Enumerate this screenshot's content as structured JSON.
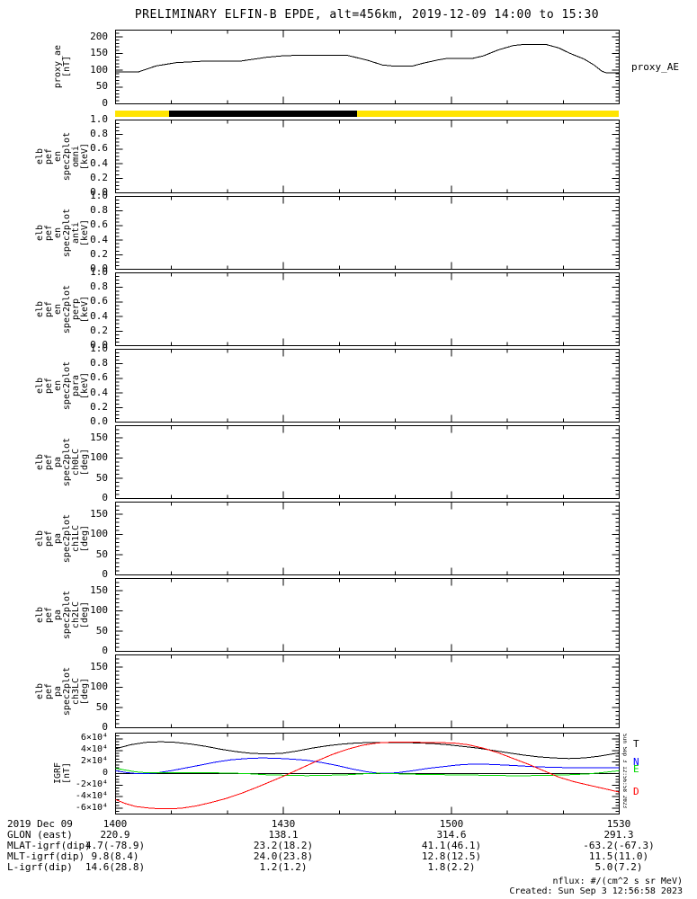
{
  "title": "PRELIMINARY ELFIN-B EPDE, alt=456km, 2019-12-09 14:00 to 15:30",
  "footer": {
    "nflux": "nflux: #/(cm^2 s sr MeV)",
    "created": "Created: Sun Sep  3 12:56:58 2023"
  },
  "side_stamp": "Sun Sep 3 12:56:58 2023",
  "xaxis": {
    "time_labels": [
      "1400",
      "1430",
      "1500",
      "1530"
    ],
    "major_fracs": [
      0,
      0.33333,
      0.66667,
      1
    ],
    "minor_divs": 9
  },
  "bottom_table": {
    "rows": [
      {
        "label": "2019 Dec 09",
        "values": [
          "1400",
          "1430",
          "1500",
          "1530"
        ]
      },
      {
        "label": "GLON (east)",
        "values": [
          "220.9",
          "138.1",
          "314.6",
          "291.3"
        ]
      },
      {
        "label": "MLAT-igrf(dip)",
        "values": [
          "4.7(-78.9)",
          "23.2(18.2)",
          "41.1(46.1)",
          "-63.2(-67.3)"
        ]
      },
      {
        "label": "MLT-igrf(dip)",
        "values": [
          "9.8(8.4)",
          "24.0(23.8)",
          "12.8(12.5)",
          "11.5(11.0)"
        ]
      },
      {
        "label": "L-igrf(dip)",
        "values": [
          "14.6(28.8)",
          "1.2(1.2)",
          "1.8(2.2)",
          "5.0(7.2)"
        ]
      }
    ]
  },
  "chart_data": [
    {
      "id": "proxy_ae",
      "type": "line",
      "ylabel_lines": [
        "proxy_ae",
        "[nT]"
      ],
      "right_label": "proxy_AE",
      "right_label_v": 108,
      "ylim": [
        0,
        220
      ],
      "yminor": 10,
      "yticks": [
        {
          "v": 0,
          "t": "0"
        },
        {
          "v": 50,
          "t": "50"
        },
        {
          "v": 100,
          "t": "100"
        },
        {
          "v": 150,
          "t": "150"
        },
        {
          "v": 200,
          "t": "200"
        }
      ],
      "series": [
        {
          "name": "proxy_AE",
          "color": "#000000",
          "points": [
            [
              0,
              95
            ],
            [
              0.045,
              95
            ],
            [
              0.08,
              113
            ],
            [
              0.12,
              123
            ],
            [
              0.17,
              127
            ],
            [
              0.25,
              128
            ],
            [
              0.3,
              139
            ],
            [
              0.33,
              143
            ],
            [
              0.36,
              145
            ],
            [
              0.46,
              145
            ],
            [
              0.5,
              130
            ],
            [
              0.53,
              116
            ],
            [
              0.55,
              113
            ],
            [
              0.59,
              113
            ],
            [
              0.61,
              121
            ],
            [
              0.64,
              131
            ],
            [
              0.66,
              136
            ],
            [
              0.71,
              136
            ],
            [
              0.73,
              143
            ],
            [
              0.76,
              161
            ],
            [
              0.79,
              174
            ],
            [
              0.81,
              177
            ],
            [
              0.855,
              177
            ],
            [
              0.88,
              167
            ],
            [
              0.9,
              152
            ],
            [
              0.93,
              134
            ],
            [
              0.95,
              116
            ],
            [
              0.965,
              98
            ],
            [
              0.975,
              92
            ],
            [
              1,
              92
            ]
          ]
        }
      ]
    },
    {
      "id": "science_zone_bar",
      "type": "strip",
      "segments": [
        {
          "from": 0,
          "to": 0.107,
          "color": "#ffe400"
        },
        {
          "from": 0.107,
          "to": 0.48,
          "color": "#000000"
        },
        {
          "from": 0.48,
          "to": 1,
          "color": "#ffe400"
        }
      ]
    },
    {
      "id": "en_omni",
      "type": "spectrogram_empty",
      "ylabel_lines": [
        "elb",
        "pef",
        "en",
        "spec2plot",
        "omni",
        "[keV]"
      ],
      "ylim": [
        0,
        1
      ],
      "yminor": 0.05,
      "yticks": [
        {
          "v": 0,
          "t": "0.0"
        },
        {
          "v": 0.2,
          "t": "0.2"
        },
        {
          "v": 0.4,
          "t": "0.4"
        },
        {
          "v": 0.6,
          "t": "0.6"
        },
        {
          "v": 0.8,
          "t": "0.8"
        },
        {
          "v": 1,
          "t": "1.0"
        }
      ],
      "series": []
    },
    {
      "id": "en_anti",
      "type": "spectrogram_empty",
      "ylabel_lines": [
        "elb",
        "pef",
        "en",
        "spec2plot",
        "anti",
        "[keV]"
      ],
      "ylim": [
        0,
        1
      ],
      "yminor": 0.05,
      "yticks": [
        {
          "v": 0,
          "t": "0.0"
        },
        {
          "v": 0.2,
          "t": "0.2"
        },
        {
          "v": 0.4,
          "t": "0.4"
        },
        {
          "v": 0.6,
          "t": "0.6"
        },
        {
          "v": 0.8,
          "t": "0.8"
        },
        {
          "v": 1,
          "t": "1.0"
        }
      ],
      "series": []
    },
    {
      "id": "en_perp",
      "type": "spectrogram_empty",
      "ylabel_lines": [
        "elb",
        "pef",
        "en",
        "spec2plot",
        "perp",
        "[keV]"
      ],
      "ylim": [
        0,
        1
      ],
      "yminor": 0.05,
      "yticks": [
        {
          "v": 0,
          "t": "0.0"
        },
        {
          "v": 0.2,
          "t": "0.2"
        },
        {
          "v": 0.4,
          "t": "0.4"
        },
        {
          "v": 0.6,
          "t": "0.6"
        },
        {
          "v": 0.8,
          "t": "0.8"
        },
        {
          "v": 1,
          "t": "1.0"
        }
      ],
      "series": []
    },
    {
      "id": "en_para",
      "type": "spectrogram_empty",
      "ylabel_lines": [
        "elb",
        "pef",
        "en",
        "spec2plot",
        "para",
        "[keV]"
      ],
      "ylim": [
        0,
        1
      ],
      "yminor": 0.05,
      "yticks": [
        {
          "v": 0,
          "t": "0.0"
        },
        {
          "v": 0.2,
          "t": "0.2"
        },
        {
          "v": 0.4,
          "t": "0.4"
        },
        {
          "v": 0.6,
          "t": "0.6"
        },
        {
          "v": 0.8,
          "t": "0.8"
        },
        {
          "v": 1,
          "t": "1.0"
        }
      ],
      "series": []
    },
    {
      "id": "pa_ch0LC",
      "type": "spectrogram_empty",
      "ylabel_lines": [
        "elb",
        "pef",
        "pa",
        "spec2plot",
        "ch0LC",
        "[deg]"
      ],
      "ylim": [
        0,
        180
      ],
      "yminor": 10,
      "yticks": [
        {
          "v": 0,
          "t": "0"
        },
        {
          "v": 50,
          "t": "50"
        },
        {
          "v": 100,
          "t": "100"
        },
        {
          "v": 150,
          "t": "150"
        }
      ],
      "series": []
    },
    {
      "id": "pa_ch1LC",
      "type": "spectrogram_empty",
      "ylabel_lines": [
        "elb",
        "pef",
        "pa",
        "spec2plot",
        "ch1LC",
        "[deg]"
      ],
      "ylim": [
        0,
        180
      ],
      "yminor": 10,
      "yticks": [
        {
          "v": 0,
          "t": "0"
        },
        {
          "v": 50,
          "t": "50"
        },
        {
          "v": 100,
          "t": "100"
        },
        {
          "v": 150,
          "t": "150"
        }
      ],
      "series": []
    },
    {
      "id": "pa_ch2LC",
      "type": "spectrogram_empty",
      "ylabel_lines": [
        "elb",
        "pef",
        "pa",
        "spec2plot",
        "ch2LC",
        "[deg]"
      ],
      "ylim": [
        0,
        180
      ],
      "yminor": 10,
      "yticks": [
        {
          "v": 0,
          "t": "0"
        },
        {
          "v": 50,
          "t": "50"
        },
        {
          "v": 100,
          "t": "100"
        },
        {
          "v": 150,
          "t": "150"
        }
      ],
      "series": []
    },
    {
      "id": "pa_ch3LC",
      "type": "spectrogram_empty",
      "ylabel_lines": [
        "elb",
        "pef",
        "pa",
        "spec2plot",
        "ch3LC",
        "[deg]"
      ],
      "ylim": [
        0,
        180
      ],
      "yminor": 10,
      "yticks": [
        {
          "v": 0,
          "t": "0"
        },
        {
          "v": 50,
          "t": "50"
        },
        {
          "v": 100,
          "t": "100"
        },
        {
          "v": 150,
          "t": "150"
        }
      ],
      "series": []
    },
    {
      "id": "igrf",
      "type": "line",
      "zero_line": true,
      "tick_small": true,
      "ylabel_lines": [
        "IGRF",
        "[nT]"
      ],
      "ylim": [
        -70000,
        70000
      ],
      "yminor": 5000,
      "yticks": [
        {
          "v": 60000,
          "t": "6×10⁴"
        },
        {
          "v": 40000,
          "t": "4×10⁴"
        },
        {
          "v": 20000,
          "t": "2×10⁴"
        },
        {
          "v": 0,
          "t": "0"
        },
        {
          "v": -20000,
          "t": "-2×10⁴"
        },
        {
          "v": -40000,
          "t": "-4×10⁴"
        },
        {
          "v": -60000,
          "t": "-6×10⁴"
        }
      ],
      "right_series_labels": [
        {
          "t": "T",
          "color": "#000000",
          "v": 50000
        },
        {
          "t": "N",
          "color": "#0000ff",
          "v": 19000
        },
        {
          "t": "E",
          "color": "#00d800",
          "v": 7000
        },
        {
          "t": "D",
          "color": "#ff0000",
          "v": -33000
        }
      ],
      "series": [
        {
          "name": "T",
          "color": "#000000",
          "points": [
            [
              0,
              43000
            ],
            [
              0.03,
              50000
            ],
            [
              0.06,
              54000
            ],
            [
              0.09,
              55000
            ],
            [
              0.12,
              54000
            ],
            [
              0.15,
              51000
            ],
            [
              0.18,
              47000
            ],
            [
              0.21,
              42000
            ],
            [
              0.24,
              38000
            ],
            [
              0.27,
              35000
            ],
            [
              0.3,
              34000
            ],
            [
              0.33,
              35000
            ],
            [
              0.36,
              39000
            ],
            [
              0.39,
              44000
            ],
            [
              0.42,
              48000
            ],
            [
              0.45,
              51000
            ],
            [
              0.48,
              53000
            ],
            [
              0.52,
              54000
            ],
            [
              0.56,
              54000
            ],
            [
              0.6,
              53000
            ],
            [
              0.63,
              52000
            ],
            [
              0.66,
              50000
            ],
            [
              0.69,
              47000
            ],
            [
              0.72,
              44000
            ],
            [
              0.75,
              40000
            ],
            [
              0.78,
              36000
            ],
            [
              0.81,
              32000
            ],
            [
              0.84,
              29000
            ],
            [
              0.87,
              27000
            ],
            [
              0.9,
              26000
            ],
            [
              0.93,
              27000
            ],
            [
              0.96,
              30000
            ],
            [
              1,
              36000
            ]
          ]
        },
        {
          "name": "N",
          "color": "#0000ff",
          "points": [
            [
              0,
              5000
            ],
            [
              0.02,
              2000
            ],
            [
              0.04,
              0
            ],
            [
              0.06,
              0
            ],
            [
              0.08,
              1000
            ],
            [
              0.11,
              5000
            ],
            [
              0.14,
              10000
            ],
            [
              0.17,
              15000
            ],
            [
              0.2,
              20000
            ],
            [
              0.23,
              24000
            ],
            [
              0.26,
              26000
            ],
            [
              0.29,
              27000
            ],
            [
              0.32,
              26500
            ],
            [
              0.35,
              25000
            ],
            [
              0.38,
              23000
            ],
            [
              0.41,
              19000
            ],
            [
              0.44,
              14000
            ],
            [
              0.47,
              8000
            ],
            [
              0.5,
              3000
            ],
            [
              0.52,
              1000
            ],
            [
              0.54,
              500
            ],
            [
              0.56,
              1500
            ],
            [
              0.59,
              5000
            ],
            [
              0.62,
              9000
            ],
            [
              0.65,
              12000
            ],
            [
              0.68,
              15000
            ],
            [
              0.71,
              16500
            ],
            [
              0.74,
              16000
            ],
            [
              0.77,
              15000
            ],
            [
              0.8,
              13500
            ],
            [
              0.83,
              12000
            ],
            [
              0.86,
              11000
            ],
            [
              0.89,
              10500
            ],
            [
              0.92,
              10000
            ],
            [
              1,
              10000
            ]
          ]
        },
        {
          "name": "E",
          "color": "#00d800",
          "points": [
            [
              0,
              9000
            ],
            [
              0.02,
              6000
            ],
            [
              0.04,
              3000
            ],
            [
              0.06,
              1500
            ],
            [
              0.1,
              1500
            ],
            [
              0.18,
              1500
            ],
            [
              0.22,
              1000
            ],
            [
              0.26,
              0
            ],
            [
              0.3,
              -2000
            ],
            [
              0.34,
              -3000
            ],
            [
              0.38,
              -3500
            ],
            [
              0.42,
              -3000
            ],
            [
              0.46,
              -2000
            ],
            [
              0.49,
              -500
            ],
            [
              0.52,
              500
            ],
            [
              0.55,
              0
            ],
            [
              0.58,
              -1000
            ],
            [
              0.62,
              -1500
            ],
            [
              0.66,
              -2000
            ],
            [
              0.7,
              -2500
            ],
            [
              0.74,
              -3000
            ],
            [
              0.78,
              -3500
            ],
            [
              0.82,
              -3500
            ],
            [
              0.86,
              -3000
            ],
            [
              0.9,
              -2000
            ],
            [
              0.94,
              -500
            ],
            [
              0.97,
              2000
            ],
            [
              1,
              5000
            ]
          ]
        },
        {
          "name": "D",
          "color": "#ff0000",
          "points": [
            [
              0,
              -45000
            ],
            [
              0.02,
              -52000
            ],
            [
              0.04,
              -57000
            ],
            [
              0.07,
              -60000
            ],
            [
              0.1,
              -61000
            ],
            [
              0.13,
              -60000
            ],
            [
              0.16,
              -56000
            ],
            [
              0.19,
              -50000
            ],
            [
              0.22,
              -43000
            ],
            [
              0.25,
              -34000
            ],
            [
              0.28,
              -24000
            ],
            [
              0.31,
              -13000
            ],
            [
              0.34,
              -2000
            ],
            [
              0.37,
              10000
            ],
            [
              0.4,
              22000
            ],
            [
              0.43,
              33000
            ],
            [
              0.46,
              42000
            ],
            [
              0.49,
              49000
            ],
            [
              0.52,
              53000
            ],
            [
              0.55,
              54500
            ],
            [
              0.58,
              54500
            ],
            [
              0.61,
              54000
            ],
            [
              0.64,
              53500
            ],
            [
              0.67,
              53000
            ],
            [
              0.7,
              50000
            ],
            [
              0.73,
              44000
            ],
            [
              0.76,
              36000
            ],
            [
              0.79,
              26000
            ],
            [
              0.82,
              16000
            ],
            [
              0.85,
              5000
            ],
            [
              0.88,
              -6000
            ],
            [
              0.91,
              -14000
            ],
            [
              0.94,
              -20000
            ],
            [
              0.97,
              -26000
            ],
            [
              1,
              -32000
            ]
          ]
        }
      ]
    }
  ]
}
